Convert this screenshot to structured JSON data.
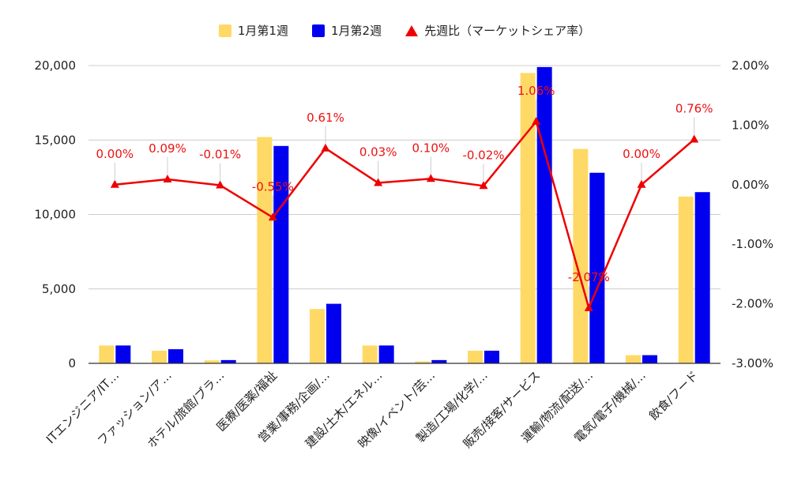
{
  "chart_data": {
    "type": "bar",
    "title": "",
    "categories": [
      "ITエンジニア/IT…",
      "ファッション/ア…",
      "ホテル/旅館/ブラ…",
      "医療/医薬/福祉",
      "営業/事務/企画/…",
      "建設/土木/エネル…",
      "映像/イベント/芸…",
      "製造/工場/化学/…",
      "販売/接客/サービス",
      "運輸/物流/配送/…",
      "電気/電子/機械/…",
      "飲食/フード"
    ],
    "series": [
      {
        "name": "1月第1週",
        "type": "bar",
        "axis": "left",
        "color": "#ffd966",
        "values": [
          1200,
          850,
          200,
          15200,
          3650,
          1200,
          130,
          850,
          19500,
          14400,
          550,
          11200
        ]
      },
      {
        "name": "1月第2週",
        "type": "bar",
        "axis": "left",
        "color": "#0000ee",
        "values": [
          1200,
          950,
          220,
          14600,
          4000,
          1200,
          220,
          850,
          19900,
          12800,
          550,
          11500
        ]
      },
      {
        "name": "先週比（マーケットシェア率）",
        "type": "line",
        "axis": "right",
        "color": "#ee0000",
        "values": [
          0.0,
          0.09,
          -0.01,
          -0.55,
          0.61,
          0.03,
          0.1,
          -0.02,
          1.06,
          -2.07,
          0.0,
          0.76
        ],
        "labels": [
          "0.00%",
          "0.09%",
          "-0.01%",
          "-0.55%",
          "0.61%",
          "0.03%",
          "0.10%",
          "-0.02%",
          "1.06%",
          "-2.07%",
          "0.00%",
          "0.76%"
        ]
      }
    ],
    "left_axis": {
      "ylim": [
        0,
        20000
      ],
      "ticks": [
        "0",
        "5,000",
        "10,000",
        "15,000",
        "20,000"
      ]
    },
    "right_axis": {
      "ylim": [
        -3,
        2
      ],
      "ticks": [
        "-3.00%",
        "-2.00%",
        "-1.00%",
        "0.00%",
        "1.00%",
        "2.00%"
      ]
    },
    "grid": true,
    "legend": "top-center"
  }
}
